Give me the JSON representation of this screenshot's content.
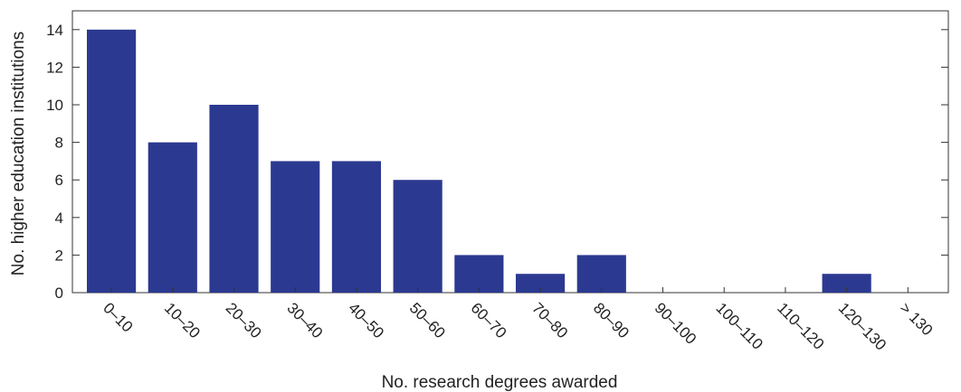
{
  "chart_data": {
    "type": "bar",
    "title": "",
    "xlabel": "No. research degrees awarded",
    "ylabel": "No. higher education institutions",
    "categories": [
      "0–10",
      "10–20",
      "20–30",
      "30–40",
      "40–50",
      "50–60",
      "60–70",
      "70–80",
      "80–90",
      "90–100",
      "100–110",
      "110–120",
      "120–130",
      "> 130"
    ],
    "values": [
      14,
      8,
      10,
      7,
      7,
      6,
      2,
      1,
      2,
      0,
      0,
      0,
      1,
      0
    ],
    "ylim": [
      0,
      15
    ],
    "yticks": [
      0,
      2,
      4,
      6,
      8,
      10,
      12,
      14
    ],
    "yticklabels": [
      "0",
      "2",
      "4",
      "6",
      "8",
      "10",
      "12",
      "14"
    ],
    "bar_color": "#2b3990",
    "grid": false,
    "legend": "none"
  }
}
